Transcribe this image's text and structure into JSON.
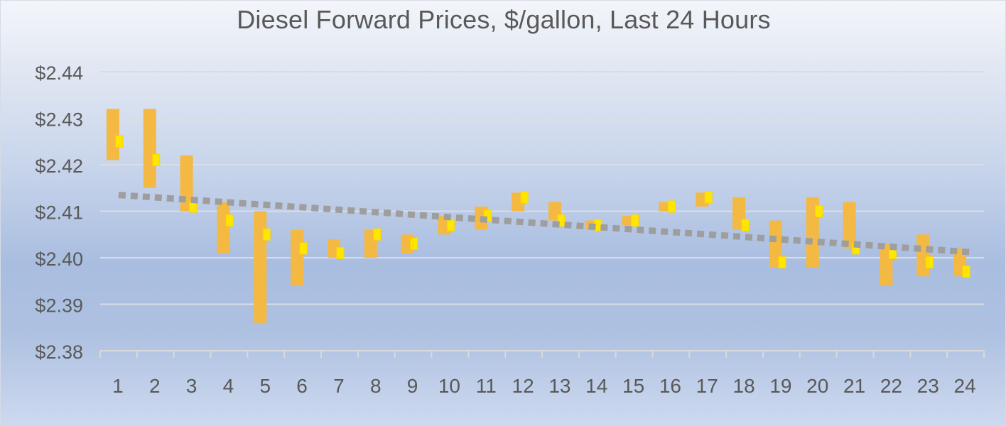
{
  "chart_data": {
    "type": "stock",
    "title": "Diesel Forward Prices, $/gallon, Last 24 Hours",
    "xlabel": "",
    "ylabel": "",
    "y_tick_format": "${v}",
    "y_tick_decimals": 2,
    "ylim": [
      2.38,
      2.44
    ],
    "y_ticks": [
      2.38,
      2.39,
      2.4,
      2.41,
      2.42,
      2.43,
      2.44
    ],
    "categories": [
      "1",
      "2",
      "3",
      "4",
      "5",
      "6",
      "7",
      "8",
      "9",
      "10",
      "11",
      "12",
      "13",
      "14",
      "15",
      "16",
      "17",
      "18",
      "19",
      "20",
      "21",
      "22",
      "23",
      "24"
    ],
    "grid": true,
    "legend": "none",
    "series": [
      {
        "high": [
          2.432,
          2.432,
          2.422,
          2.412,
          2.41,
          2.406,
          2.404,
          2.406,
          2.405,
          2.409,
          2.411,
          2.414,
          2.412,
          2.408,
          2.409,
          2.412,
          2.414,
          2.413,
          2.408,
          2.413,
          2.412,
          2.403,
          2.405,
          2.402
        ],
        "low": [
          2.421,
          2.415,
          2.41,
          2.401,
          2.386,
          2.394,
          2.4,
          2.4,
          2.401,
          2.405,
          2.406,
          2.41,
          2.408,
          2.406,
          2.407,
          2.41,
          2.411,
          2.406,
          2.398,
          2.398,
          2.402,
          2.394,
          2.396,
          2.396
        ],
        "close": [
          2.425,
          2.421,
          2.411,
          2.408,
          2.405,
          2.402,
          2.401,
          2.405,
          2.403,
          2.407,
          2.409,
          2.413,
          2.408,
          2.407,
          2.408,
          2.411,
          2.413,
          2.407,
          2.399,
          2.41,
          2.402,
          2.401,
          2.399,
          2.397
        ]
      }
    ],
    "trendline": {
      "style": "dotted",
      "start": [
        1,
        2.4135
      ],
      "end": [
        24,
        2.4012
      ]
    },
    "colors": {
      "range_bar": "#f4b942",
      "close_marker": "#ffe600",
      "close_marker_edge": "#ffd400",
      "trendline": "#9e9e9e",
      "gridline": "#d9dde6",
      "axis": "#d9d9d9",
      "text": "#595959"
    }
  }
}
